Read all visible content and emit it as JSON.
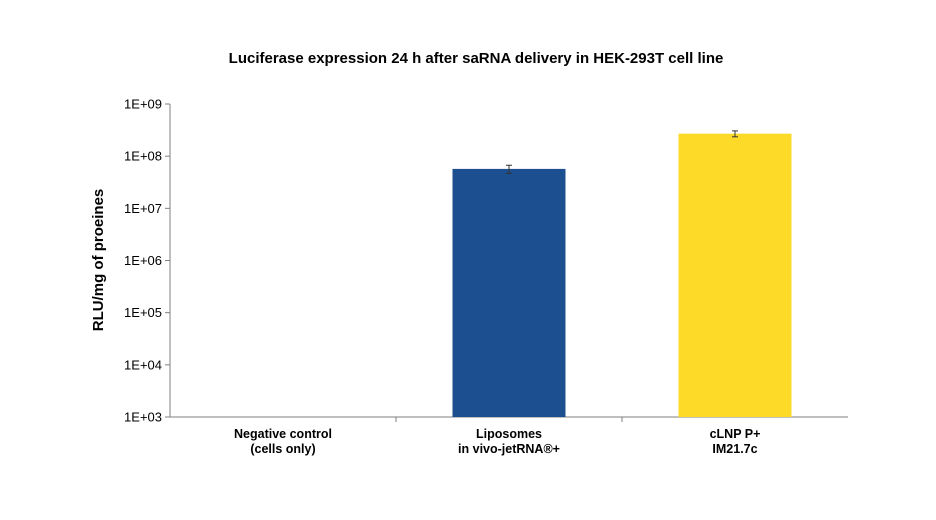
{
  "chart_data": {
    "type": "bar",
    "title": "Luciferase expression 24 h after saRNA delivery in HEK-293T cell line",
    "ylabel": "RLU/mg of proeines",
    "xlabel": "",
    "yscale": "log",
    "ylim": [
      1000,
      1000000000
    ],
    "yticks": [
      "1E+03",
      "1E+04",
      "1E+05",
      "1E+06",
      "1E+07",
      "1E+08",
      "1E+09"
    ],
    "categories": [
      [
        "Negative control",
        "(cells only)"
      ],
      [
        "Liposomes",
        "in vivo-jetRNA®+"
      ],
      [
        "cLNP P+",
        "IM21.7c"
      ]
    ],
    "values": [
      null,
      57000000,
      270000000
    ],
    "error": [
      null,
      10000000,
      35000000
    ],
    "colors": [
      null,
      "#1b4f8f",
      "#fdd928"
    ],
    "grid": false,
    "legend": "none"
  }
}
